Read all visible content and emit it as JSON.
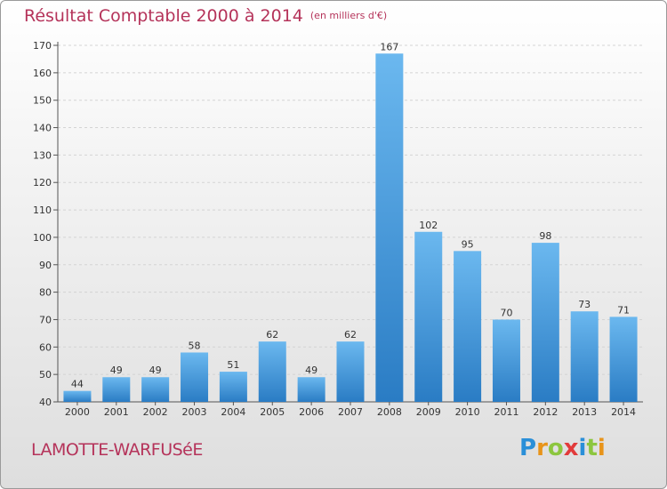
{
  "title": "Résultat Comptable 2000 à 2014",
  "unit": "(en milliers d'€)",
  "commune": "LAMOTTE-WARFUSéE",
  "logo": {
    "letters": [
      "P",
      "r",
      "o",
      "x",
      "i",
      "t",
      "i"
    ],
    "colors": [
      "#2a8fd8",
      "#e8941a",
      "#8cc63f",
      "#e23b3b",
      "#2a8fd8",
      "#8cc63f",
      "#e8941a"
    ]
  },
  "colors": {
    "bar_light": "#6bb8ef",
    "bar_dark": "#2a7cc4",
    "accent": "#b5335a"
  },
  "chart_data": {
    "type": "bar",
    "title": "Résultat Comptable 2000 à 2014",
    "subtitle": "(en milliers d'€)",
    "categories": [
      "2000",
      "2001",
      "2002",
      "2003",
      "2004",
      "2005",
      "2006",
      "2007",
      "2008",
      "2009",
      "2010",
      "2011",
      "2012",
      "2013",
      "2014"
    ],
    "values": [
      44,
      49,
      49,
      58,
      51,
      62,
      49,
      62,
      167,
      102,
      95,
      70,
      98,
      73,
      71
    ],
    "ylim": [
      40,
      170
    ],
    "yticks": [
      40,
      50,
      60,
      70,
      80,
      90,
      100,
      110,
      120,
      130,
      140,
      150,
      160,
      170
    ],
    "grid": true,
    "legend": "none"
  }
}
